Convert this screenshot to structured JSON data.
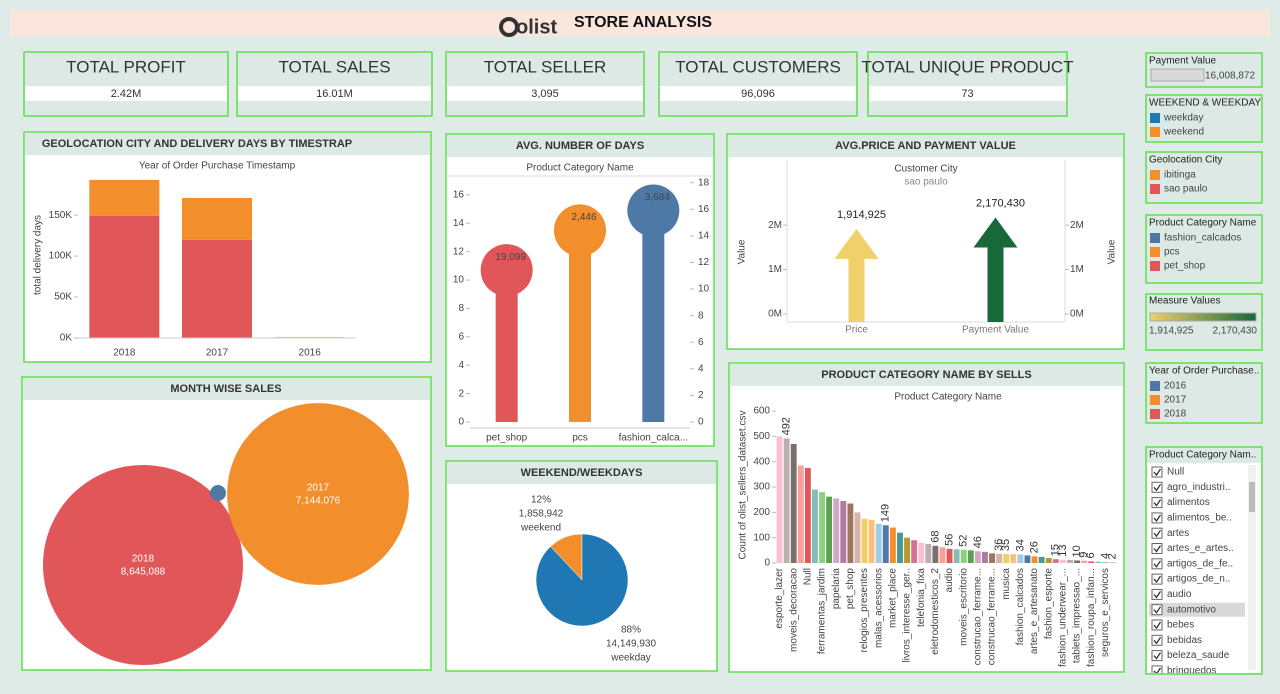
{
  "header": {
    "logo": "olist",
    "title": "STORE ANALYSIS"
  },
  "kpis": [
    {
      "label": "TOTAL PROFIT",
      "value": "2.42M"
    },
    {
      "label": "TOTAL SALES",
      "value": "16.01M"
    },
    {
      "label": "TOTAL SELLER",
      "value": "3,095"
    },
    {
      "label": "TOTAL CUSTOMERS",
      "value": "96,096"
    },
    {
      "label": "TOTAL UNIQUE PRODUCT",
      "value": "73"
    }
  ],
  "chart_data": [
    {
      "type": "stacked_bar",
      "title": "GEOLOCATION CITY AND DELIVERY DAYS BY TIMESTRAP",
      "header": "Year of Order Purchase Timestamp",
      "y_label": "total delivery days",
      "categories": [
        "2018",
        "2017",
        "2016"
      ],
      "series": [
        {
          "name": "sao paulo",
          "color": "#e15759",
          "values": [
            149000,
            120000,
            800
          ]
        },
        {
          "name": "ibitinga",
          "color": "#f28e2b",
          "values": [
            44000,
            51000,
            200
          ]
        }
      ],
      "ylim": [
        0,
        199000
      ],
      "yticks": [
        {
          "value": 0,
          "label": "0K"
        },
        {
          "value": 50000,
          "label": "50K"
        },
        {
          "value": 100000,
          "label": "100K"
        },
        {
          "value": 150000,
          "label": "150K"
        }
      ]
    },
    {
      "type": "lollipop",
      "title": "AVG. NUMBER OF DAYS",
      "header": "Product Category Name",
      "categories": [
        "pet_shop",
        "pcs",
        "fashion_calca..."
      ],
      "values": [
        10.7,
        13.5,
        14.9
      ],
      "colors": [
        "#e15759",
        "#f28e2b",
        "#4e79a7"
      ],
      "counts": [
        {
          "value": 19099,
          "label": "19,099"
        },
        {
          "value": 2446,
          "label": "2,446"
        },
        {
          "value": 3684,
          "label": "3,684"
        }
      ],
      "ylim": [
        0,
        17.05
      ],
      "yticks": [
        0,
        2,
        4,
        6,
        8,
        10,
        12,
        14,
        16
      ],
      "y2lim": [
        0,
        18.2
      ],
      "y2ticks": [
        0,
        2,
        4,
        6,
        8,
        10,
        12,
        14,
        16,
        18
      ]
    },
    {
      "type": "arrow",
      "title": "AVG.PRICE AND PAYMENT VALUE",
      "header": "Customer City",
      "subheader": "sao paulo",
      "y_label": "Value",
      "y2_label": "Value",
      "categories": [
        "Price",
        "Payment Value"
      ],
      "values": [
        1914925,
        2170430
      ],
      "value_labels": [
        "1,914,925",
        "2,170,430"
      ],
      "colors": [
        "#f0d06a",
        "#17693a"
      ],
      "ylim": [
        0,
        2790000
      ],
      "yticks": [
        {
          "value": 0,
          "label": "0M"
        },
        {
          "value": 1000000,
          "label": "1M"
        },
        {
          "value": 2000000,
          "label": "2M"
        }
      ],
      "y2ticks": [
        {
          "value": 0,
          "label": "0M"
        },
        {
          "value": 1000000,
          "label": "1M"
        },
        {
          "value": 2000000,
          "label": "2M"
        }
      ]
    },
    {
      "type": "bubble",
      "title": "MONTH WISE SALES",
      "categories": [
        "2018",
        "2017",
        null
      ],
      "values": [
        8645088,
        7144076,
        55000
      ],
      "value_labels": [
        "8,645,088",
        "7,144,076",
        null
      ],
      "colors": [
        "#e15759",
        "#f28e2b",
        "#4e79a7"
      ]
    },
    {
      "type": "pie",
      "title": "WEEKEND/WEEKDAYS",
      "categories": [
        "weekend",
        "weekday"
      ],
      "values": [
        12,
        88
      ],
      "value_labels": [
        "12%",
        "88%"
      ],
      "amounts": [
        {
          "value": 1858942,
          "label": "1,858,942"
        },
        {
          "value": 14149930,
          "label": "14,149,930"
        }
      ],
      "colors": [
        "#f28e2b",
        "#1f77b4"
      ]
    },
    {
      "type": "bar",
      "title": "PRODUCT CATEGORY NAME BY SELLS",
      "header": "Product Category Name",
      "y_label": "Count of olist_sellers_dataset.csv",
      "categories": [
        "esporte_lazer",
        null,
        "moveis_decoracao",
        null,
        "Null",
        null,
        "ferramentas_jardim",
        null,
        "papelaria",
        null,
        "pet_shop",
        null,
        "relogios_presentes",
        null,
        "malas_acessorios",
        null,
        "market_place",
        null,
        "livros_interesse_ger..",
        null,
        "telefonia_fixa",
        null,
        "eletrodomesticos_2",
        null,
        "audio",
        null,
        "moveis_escritorio",
        null,
        "construcao_ferrame...",
        null,
        "construcao_ferrame...",
        null,
        "musica",
        null,
        "fashion_calcados",
        null,
        "artes_e_artesanato",
        null,
        "fashion_esporte",
        null,
        "fashion_underwear_...",
        null,
        "tablets_impressao_...",
        null,
        "fashion_roupa_infan...",
        null,
        "seguros_e_servicos",
        null
      ],
      "values": [
        500,
        492,
        470,
        385,
        375,
        290,
        280,
        262,
        255,
        245,
        235,
        200,
        175,
        170,
        155,
        149,
        140,
        120,
        100,
        90,
        80,
        75,
        68,
        62,
        56,
        54,
        52,
        50,
        46,
        44,
        38,
        36,
        35,
        35,
        34,
        30,
        26,
        24,
        20,
        15,
        13,
        12,
        10,
        9,
        6,
        5,
        4,
        2
      ],
      "value_labels": [
        null,
        "492",
        null,
        null,
        null,
        null,
        null,
        null,
        null,
        null,
        null,
        null,
        null,
        null,
        null,
        "149",
        null,
        null,
        null,
        null,
        null,
        null,
        "68",
        null,
        "56",
        null,
        "52",
        null,
        "46",
        null,
        null,
        "36",
        "35",
        null,
        "34",
        null,
        "26",
        null,
        null,
        "15",
        "13",
        null,
        "10",
        "9",
        "6",
        null,
        "4",
        "2"
      ],
      "palette": [
        "#fabfd2",
        "#bab0ac",
        "#79706e",
        "#ff9d9a",
        "#e15759",
        "#86bcb6",
        "#8cd17d",
        "#59a14f",
        "#d4a6c8",
        "#b07aa1",
        "#9d7660",
        "#d7b5a6",
        "#f1ce63",
        "#ffbe7d",
        "#a0cbe8",
        "#4e79a7",
        "#f28e2b",
        "#499894",
        "#b6992d",
        "#d37295"
      ],
      "ylim": [
        0,
        624
      ],
      "yticks": [
        0,
        100,
        200,
        300,
        400,
        500,
        600
      ]
    }
  ],
  "legends": {
    "payment": {
      "title": "Payment Value",
      "value": 16008872,
      "label": "16,008,872"
    },
    "color_legends": [
      {
        "title": "WEEKEND & WEEKDAY",
        "items": [
          {
            "name": "weekday",
            "color": "#1f77b4"
          },
          {
            "name": "weekend",
            "color": "#f28e2b"
          }
        ]
      },
      {
        "title": "Geolocation City",
        "items": [
          {
            "name": "ibitinga",
            "color": "#f28e2b"
          },
          {
            "name": "sao paulo",
            "color": "#e15759"
          }
        ]
      },
      {
        "title": "Product Category Name",
        "items": [
          {
            "name": "fashion_calcados",
            "color": "#4e79a7"
          },
          {
            "name": "pcs",
            "color": "#f28e2b"
          },
          {
            "name": "pet_shop",
            "color": "#e15759"
          }
        ]
      },
      {
        "title": "Year of Order Purchase..",
        "items": [
          {
            "name": "2016",
            "color": "#4e79a7"
          },
          {
            "name": "2017",
            "color": "#f28e2b"
          },
          {
            "name": "2018",
            "color": "#e15759"
          }
        ]
      }
    ],
    "measure": {
      "title": "Measure Values",
      "range": [
        {
          "value": 1914925,
          "label": "1,914,925"
        },
        {
          "value": 2170430,
          "label": "2,170,430"
        }
      ],
      "colors": [
        "#f0d06a",
        "#17693a"
      ]
    }
  },
  "filter": {
    "title": "Product Category Nam..",
    "items": [
      "Null",
      "agro_industri..",
      "alimentos",
      "alimentos_be..",
      "artes",
      "artes_e_artes..",
      "artigos_de_fe..",
      "artigos_de_n..",
      "audio",
      "automotivo",
      "bebes",
      "bebidas",
      "beleza_saude",
      "brinquedos"
    ],
    "highlight_index": 9
  }
}
